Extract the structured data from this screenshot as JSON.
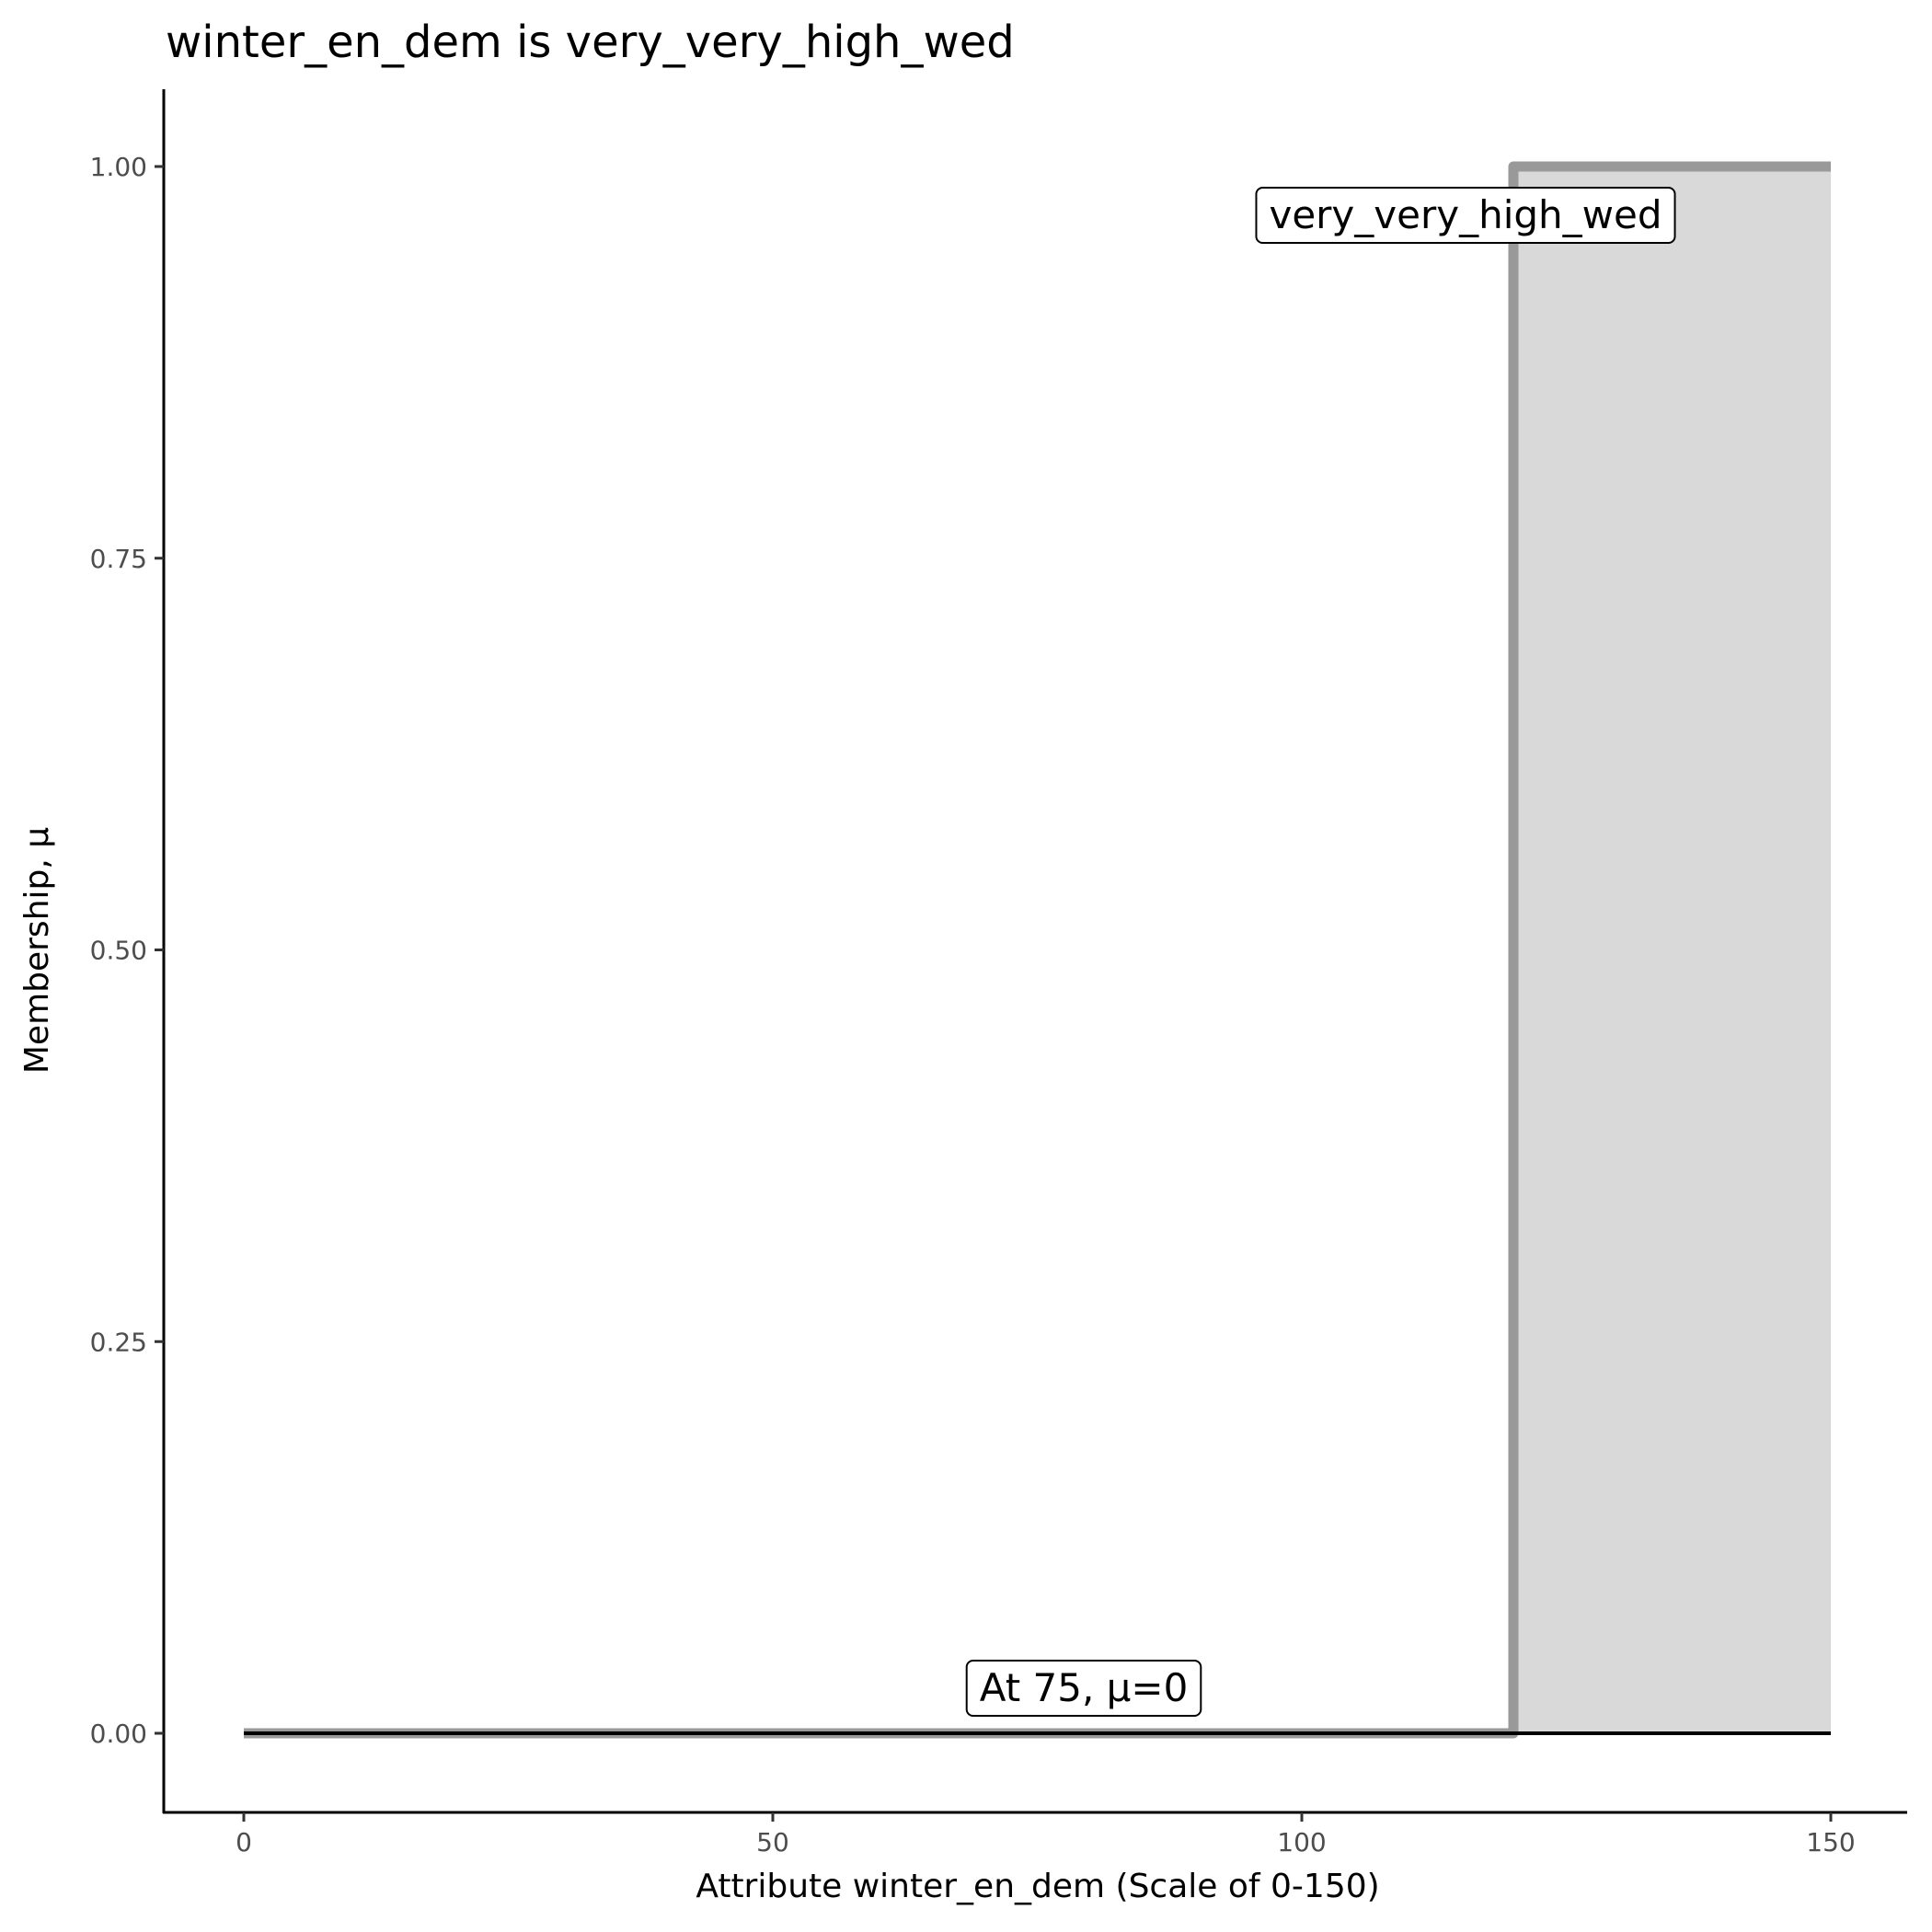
{
  "chart_data": {
    "type": "area",
    "title": "winter_en_dem is very_very_high_wed",
    "xlabel": "Attribute winter_en_dem (Scale of 0-150)",
    "ylabel": "Membership, μ",
    "xlim": [
      0,
      150
    ],
    "ylim": [
      0,
      1
    ],
    "x_ticks": [
      "0",
      "50",
      "100",
      "150"
    ],
    "y_ticks": [
      "0.00",
      "0.25",
      "0.50",
      "0.75",
      "1.00"
    ],
    "grid": false,
    "series": [
      {
        "name": "very_very_high_wed",
        "x": [
          0,
          120,
          120,
          150
        ],
        "y": [
          0,
          0,
          1,
          1
        ],
        "line_color": "#999999",
        "fill_color": "#d9d9d9"
      }
    ],
    "baseline": {
      "x": [
        0,
        150
      ],
      "y": [
        0,
        0
      ],
      "color": "#000000"
    },
    "annotations": [
      {
        "text": "very_very_high_wed",
        "x": 120,
        "y": 0.97
      },
      {
        "text": "At 75, μ=0",
        "x": 75,
        "y": 0.03
      }
    ]
  }
}
